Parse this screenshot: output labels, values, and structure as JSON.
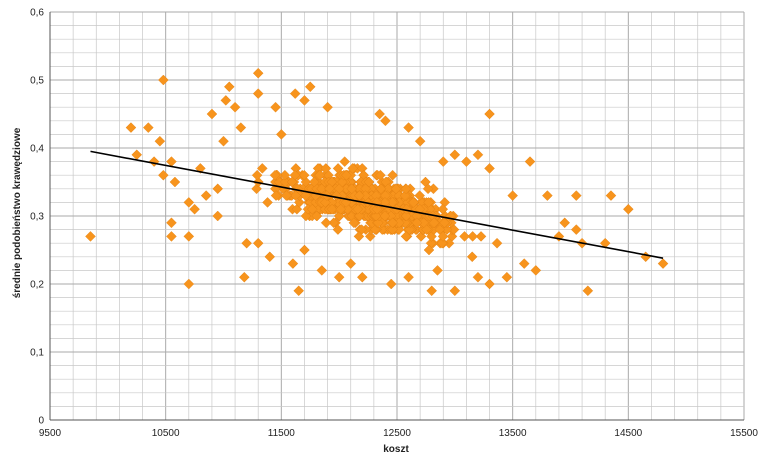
{
  "chart_data": {
    "type": "scatter",
    "title": "",
    "xlabel": "koszt",
    "ylabel": "średnie podobieństwo krawędziowe",
    "xlim": [
      9500,
      15500
    ],
    "ylim": [
      0,
      0.6
    ],
    "x_ticks": [
      9500,
      10500,
      11500,
      12500,
      13500,
      14500,
      15500
    ],
    "y_ticks": [
      0,
      0.1,
      0.2,
      0.3,
      0.4,
      0.5,
      0.6
    ],
    "x_tick_labels": [
      "9500",
      "10500",
      "11500",
      "12500",
      "13500",
      "14500",
      "15500"
    ],
    "y_tick_labels": [
      "0",
      "0,1",
      "0,2",
      "0,3",
      "0,4",
      "0,5",
      "0,6"
    ],
    "grid": true,
    "legend": "none",
    "marker": "diamond",
    "point_color": "#F7941D",
    "line_color": "#000000",
    "grid_color": "#c8c8c8",
    "trendline": {
      "type": "linear",
      "x": [
        9850,
        14800
      ],
      "y": [
        0.395,
        0.238
      ]
    },
    "series": [
      {
        "points": [
          [
            9850,
            0.27
          ],
          [
            10480,
            0.5
          ],
          [
            11300,
            0.51
          ],
          [
            13300,
            0.45
          ],
          [
            10200,
            0.43
          ],
          [
            10350,
            0.43
          ],
          [
            10250,
            0.39
          ],
          [
            10450,
            0.41
          ],
          [
            10400,
            0.38
          ],
          [
            10480,
            0.36
          ],
          [
            10550,
            0.38
          ],
          [
            10580,
            0.35
          ],
          [
            10550,
            0.29
          ],
          [
            10550,
            0.27
          ],
          [
            10700,
            0.27
          ],
          [
            10700,
            0.2
          ],
          [
            10700,
            0.32
          ],
          [
            10750,
            0.31
          ],
          [
            10800,
            0.37
          ],
          [
            10850,
            0.33
          ],
          [
            10900,
            0.45
          ],
          [
            10950,
            0.34
          ],
          [
            11000,
            0.41
          ],
          [
            11020,
            0.47
          ],
          [
            11050,
            0.49
          ],
          [
            11100,
            0.46
          ],
          [
            11150,
            0.43
          ],
          [
            11180,
            0.21
          ],
          [
            11200,
            0.26
          ],
          [
            11300,
            0.48
          ],
          [
            11450,
            0.46
          ],
          [
            11500,
            0.42
          ],
          [
            11620,
            0.48
          ],
          [
            11700,
            0.47
          ],
          [
            11750,
            0.49
          ],
          [
            11900,
            0.46
          ],
          [
            11650,
            0.19
          ],
          [
            11700,
            0.25
          ],
          [
            11600,
            0.23
          ],
          [
            12100,
            0.23
          ],
          [
            12200,
            0.21
          ],
          [
            12350,
            0.45
          ],
          [
            12400,
            0.44
          ],
          [
            12600,
            0.43
          ],
          [
            12700,
            0.41
          ],
          [
            12900,
            0.38
          ],
          [
            13000,
            0.39
          ],
          [
            13100,
            0.38
          ],
          [
            13200,
            0.39
          ],
          [
            12800,
            0.19
          ],
          [
            13000,
            0.19
          ],
          [
            13200,
            0.21
          ],
          [
            13300,
            0.37
          ],
          [
            13500,
            0.33
          ],
          [
            13650,
            0.38
          ],
          [
            13800,
            0.33
          ],
          [
            13900,
            0.27
          ],
          [
            14050,
            0.33
          ],
          [
            14050,
            0.28
          ],
          [
            14150,
            0.19
          ],
          [
            14100,
            0.26
          ],
          [
            14350,
            0.33
          ],
          [
            14300,
            0.26
          ],
          [
            14500,
            0.31
          ],
          [
            14650,
            0.24
          ],
          [
            14800,
            0.23
          ],
          [
            13950,
            0.29
          ],
          [
            13700,
            0.22
          ],
          [
            13600,
            0.23
          ],
          [
            13450,
            0.21
          ],
          [
            13300,
            0.2
          ],
          [
            13150,
            0.24
          ],
          [
            12850,
            0.22
          ],
          [
            12600,
            0.21
          ],
          [
            12450,
            0.2
          ],
          [
            12000,
            0.21
          ],
          [
            11850,
            0.22
          ],
          [
            11400,
            0.24
          ],
          [
            11300,
            0.26
          ],
          [
            10950,
            0.3
          ]
        ]
      }
    ]
  }
}
